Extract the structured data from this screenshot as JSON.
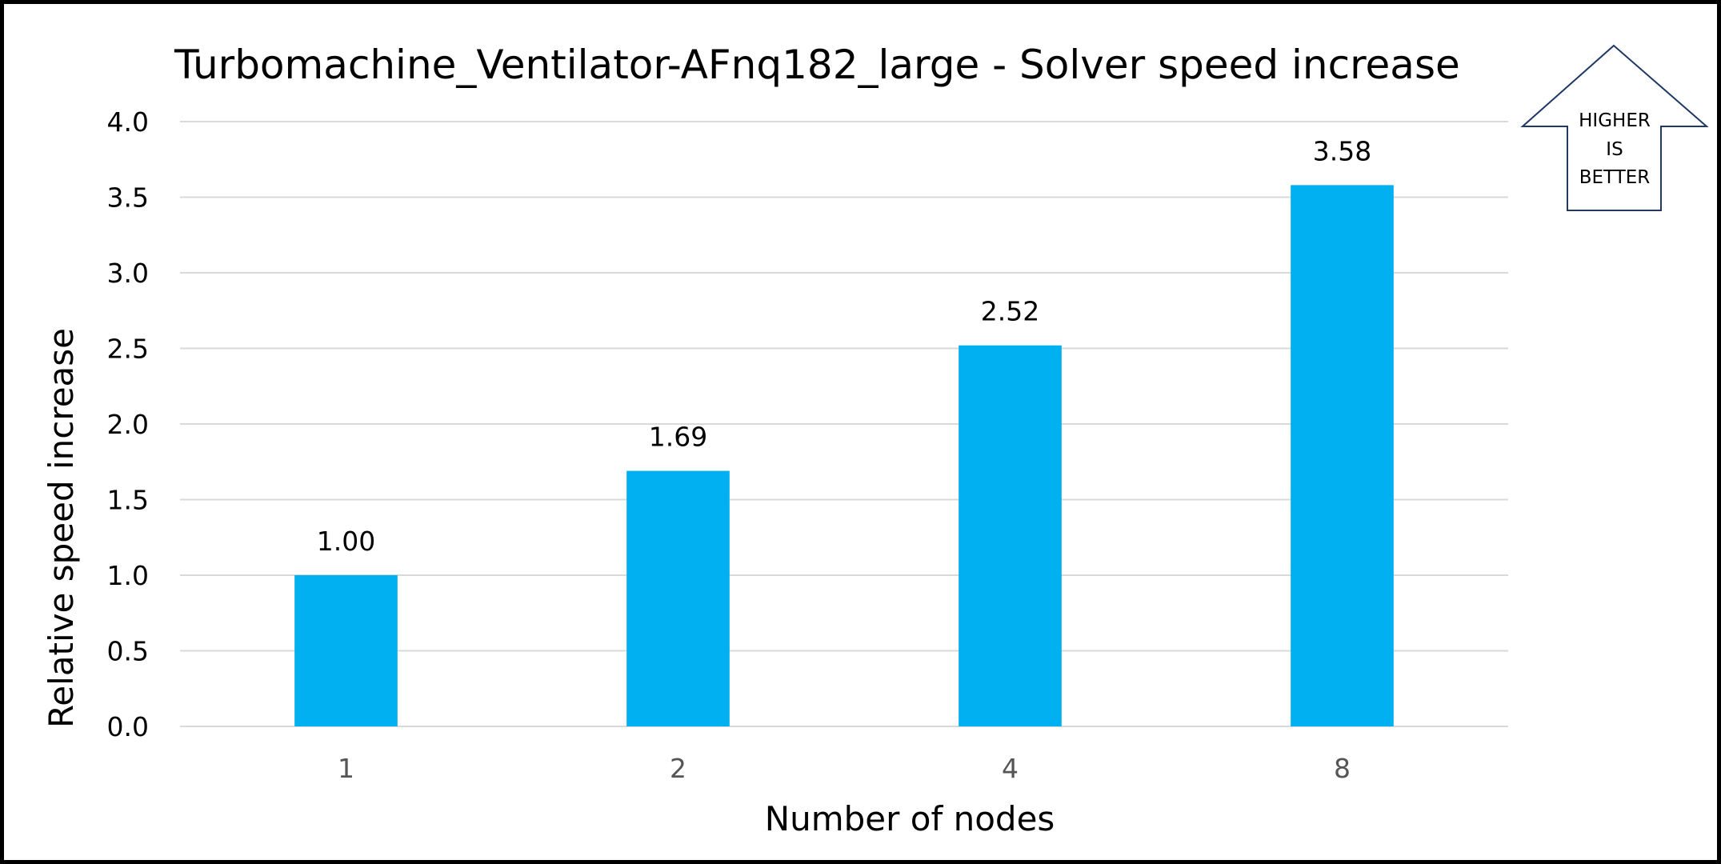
{
  "chart_data": {
    "type": "bar",
    "title": "Turbomachine_Ventilator-AFnq182_large - Solver speed increase",
    "xlabel": "Number of nodes",
    "ylabel": "Relative speed increase",
    "categories": [
      "1",
      "2",
      "4",
      "8"
    ],
    "values": [
      1.0,
      1.69,
      2.52,
      3.58
    ],
    "data_labels": [
      "1.00",
      "1.69",
      "2.52",
      "3.58"
    ],
    "ylim": [
      0,
      4
    ],
    "yticks": [
      "0.0",
      "0.5",
      "1.0",
      "1.5",
      "2.0",
      "2.5",
      "3.0",
      "3.5",
      "4.0"
    ],
    "grid": true,
    "bar_color": "#00B0F0",
    "gridline_color": "#D9D9D9"
  },
  "callout": {
    "lines": [
      "HIGHER",
      "IS",
      "BETTER"
    ],
    "border_color": "#1F3864"
  }
}
